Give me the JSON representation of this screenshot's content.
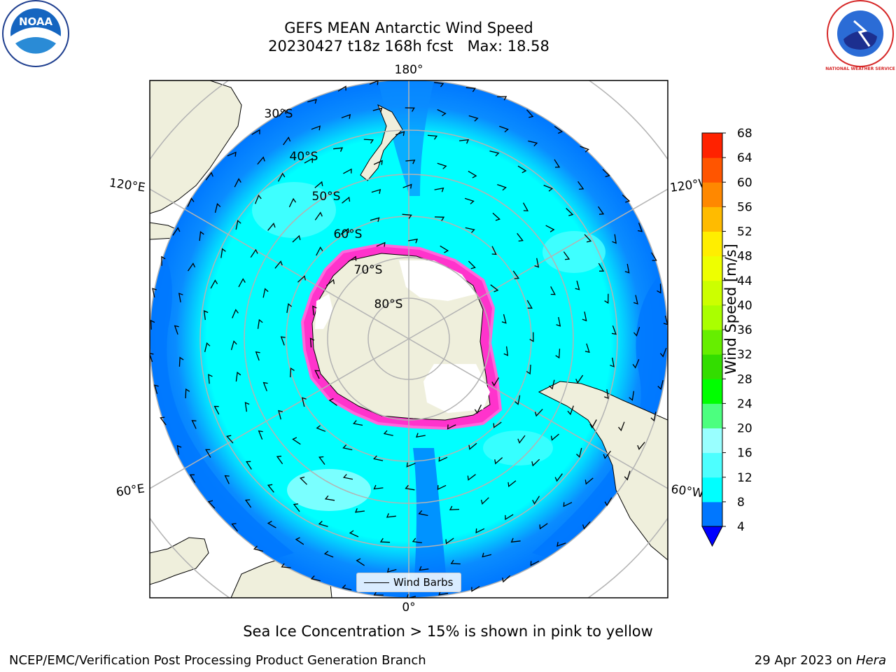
{
  "title": {
    "line1": "GEFS MEAN Antarctic Wind Speed",
    "line2": "20230427 t18z 168h fcst   Max: 18.58"
  },
  "logos": {
    "left": {
      "name": "noaa-logo",
      "text": "NOAA"
    },
    "right": {
      "name": "nws-logo",
      "text": "NATIONAL WEATHER SERVICE"
    }
  },
  "map": {
    "projection": "south-polar-stereographic",
    "longitude_labels": {
      "top": "180°",
      "upper_left": "120°E",
      "upper_right": "120°W",
      "lower_left": "60°E",
      "lower_right": "60°W",
      "bottom": "0°"
    },
    "latitude_labels": [
      "30°S",
      "40°S",
      "50°S",
      "60°S",
      "70°S",
      "80°S"
    ],
    "legend_label": "Wind Barbs",
    "colors": {
      "land": "#efefdc",
      "ocean_dark": "#0078ff",
      "ocean_cyan": "#00ffff",
      "ocean_light": "#4dffff",
      "ice_edge": "#ff33cc",
      "grid": "#b3b3b3"
    }
  },
  "colorbar": {
    "title": "Wind Speed [m/s]",
    "ticks": [
      "4",
      "8",
      "12",
      "16",
      "20",
      "24",
      "28",
      "32",
      "36",
      "40",
      "44",
      "48",
      "52",
      "56",
      "60",
      "64",
      "68"
    ],
    "colors": [
      "#0077ff",
      "#00ffff",
      "#4dffff",
      "#99ffff",
      "#4cff7f",
      "#00ff00",
      "#33dd00",
      "#66ee00",
      "#aaff00",
      "#ccff00",
      "#eeff00",
      "#ffee00",
      "#ffbb00",
      "#ff8800",
      "#ff5500",
      "#ff2200",
      "#ff0000"
    ],
    "under_color": "#0000ff"
  },
  "note": "Sea Ice Concentration > 15% is shown in pink to yellow",
  "footer": {
    "left": "NCEP/EMC/Verification Post Processing Product Generation Branch",
    "right_date": "29 Apr 2023 on ",
    "right_host": "Hera"
  }
}
